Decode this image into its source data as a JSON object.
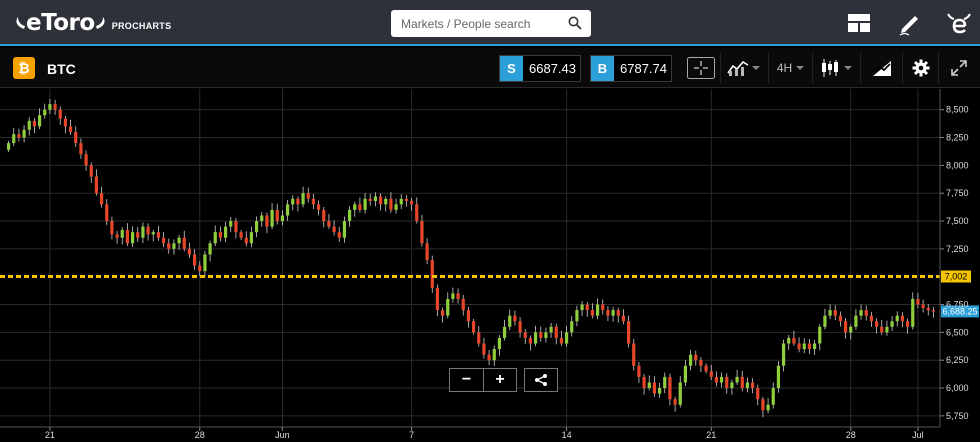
{
  "header": {
    "logo_text": "eToro",
    "logo_sub": "PROCHARTS",
    "search_placeholder": "Markets / People search",
    "icons": [
      "layout-icon",
      "pencil-icon",
      "etoro-e-icon"
    ]
  },
  "toolbar": {
    "symbol_badge": "₿",
    "symbol": "BTC",
    "sell": {
      "tag": "S",
      "price": "6687.43"
    },
    "buy": {
      "tag": "B",
      "price": "6787.74"
    },
    "timeframe": "4H",
    "tools": [
      "crosshair-icon",
      "chart-type-icon",
      "timeframe-select",
      "candles-icon",
      "indicators-icon",
      "settings-icon",
      "expand-icon"
    ]
  },
  "colors": {
    "accent": "#2a9fd8",
    "bull": "#8fcf3c",
    "bear": "#e8462a",
    "level": "#f5c400",
    "background": "#000000",
    "topbar": "#2e3139"
  },
  "chart_data": {
    "type": "candlestick",
    "y_ticks": [
      "8,500",
      "8,250",
      "8,000",
      "7,750",
      "7,500",
      "7,250",
      "6,750",
      "6,500",
      "6,250",
      "6,000",
      "5,750"
    ],
    "y_tick_values": [
      8500,
      8250,
      8000,
      7750,
      7500,
      7250,
      6750,
      6500,
      6250,
      6000,
      5750
    ],
    "ylim": [
      5650,
      8650
    ],
    "x_ticks": [
      "21",
      "28",
      "Jun",
      "7",
      "14",
      "21",
      "28",
      "Jul",
      "7"
    ],
    "x_tick_bar": [
      8,
      37,
      53,
      78,
      108,
      136,
      163,
      176,
      203
    ],
    "horizontal_level": {
      "value": 7002,
      "label": "7,002"
    },
    "last_price": {
      "value": 6688.25,
      "label": "6,688.25"
    },
    "closes": [
      8200,
      8280,
      8250,
      8320,
      8400,
      8350,
      8450,
      8500,
      8550,
      8500,
      8420,
      8350,
      8300,
      8200,
      8100,
      8000,
      7900,
      7750,
      7650,
      7500,
      7380,
      7350,
      7420,
      7300,
      7400,
      7350,
      7450,
      7380,
      7400,
      7350,
      7300,
      7250,
      7300,
      7350,
      7250,
      7200,
      7100,
      7050,
      7200,
      7300,
      7400,
      7350,
      7450,
      7500,
      7400,
      7350,
      7300,
      7400,
      7500,
      7550,
      7450,
      7600,
      7500,
      7550,
      7650,
      7700,
      7650,
      7750,
      7700,
      7650,
      7600,
      7500,
      7450,
      7400,
      7350,
      7500,
      7600,
      7650,
      7600,
      7700,
      7680,
      7720,
      7650,
      7700,
      7600,
      7650,
      7700,
      7680,
      7650,
      7500,
      7300,
      7150,
      6900,
      6700,
      6650,
      6800,
      6850,
      6800,
      6700,
      6600,
      6500,
      6400,
      6300,
      6250,
      6350,
      6450,
      6550,
      6650,
      6600,
      6500,
      6450,
      6400,
      6500,
      6450,
      6500,
      6550,
      6450,
      6400,
      6500,
      6600,
      6700,
      6750,
      6700,
      6650,
      6750,
      6700,
      6650,
      6700,
      6650,
      6600,
      6400,
      6200,
      6100,
      6000,
      6050,
      5950,
      6000,
      6100,
      5900,
      5850,
      6050,
      6200,
      6300,
      6250,
      6200,
      6150,
      6100,
      6050,
      6100,
      6000,
      6050,
      6100,
      6000,
      6050,
      6000,
      5900,
      5800,
      5850,
      6000,
      6200,
      6400,
      6450,
      6400,
      6350,
      6400,
      6350,
      6400,
      6550,
      6650,
      6700,
      6650,
      6600,
      6500,
      6550,
      6650,
      6700,
      6650,
      6600,
      6550,
      6500,
      6550,
      6600,
      6650,
      6600,
      6550,
      6800,
      6750,
      6720,
      6700,
      6688
    ]
  }
}
